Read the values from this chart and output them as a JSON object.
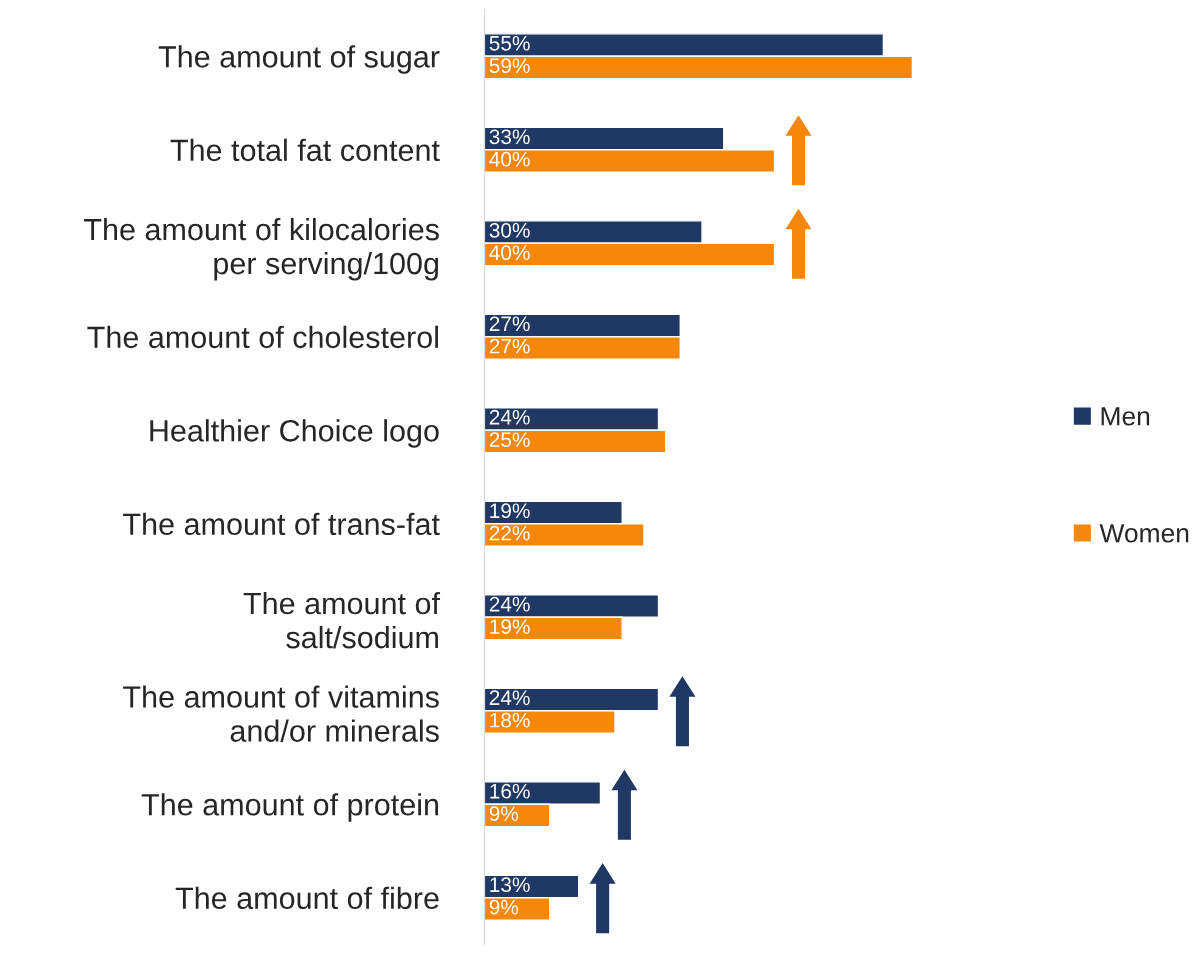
{
  "chart_data": {
    "type": "bar",
    "orientation": "horizontal",
    "categories": [
      "The amount of sugar",
      "The total fat content",
      "The amount of kilocalories\nper serving/100g",
      "The amount of cholesterol",
      "Healthier Choice logo",
      "The amount of trans-fat",
      "The amount of\nsalt/sodium",
      "The amount of vitamins\nand/or minerals",
      "The amount of protein",
      "The amount of fibre"
    ],
    "series": [
      {
        "name": "Men",
        "color": "#1f3864",
        "values": [
          55,
          33,
          30,
          27,
          24,
          19,
          24,
          24,
          16,
          13
        ],
        "value_labels": [
          "55%",
          "33%",
          "30%",
          "27%",
          "24%",
          "19%",
          "24%",
          "24%",
          "16%",
          "13%"
        ]
      },
      {
        "name": "Women",
        "color": "#f5880a",
        "values": [
          59,
          40,
          40,
          27,
          25,
          22,
          19,
          18,
          9,
          9
        ],
        "value_labels": [
          "59%",
          "40%",
          "40%",
          "27%",
          "25%",
          "22%",
          "19%",
          "18%",
          "9%",
          "9%"
        ]
      }
    ],
    "legend": "right",
    "grid": false
  }
}
